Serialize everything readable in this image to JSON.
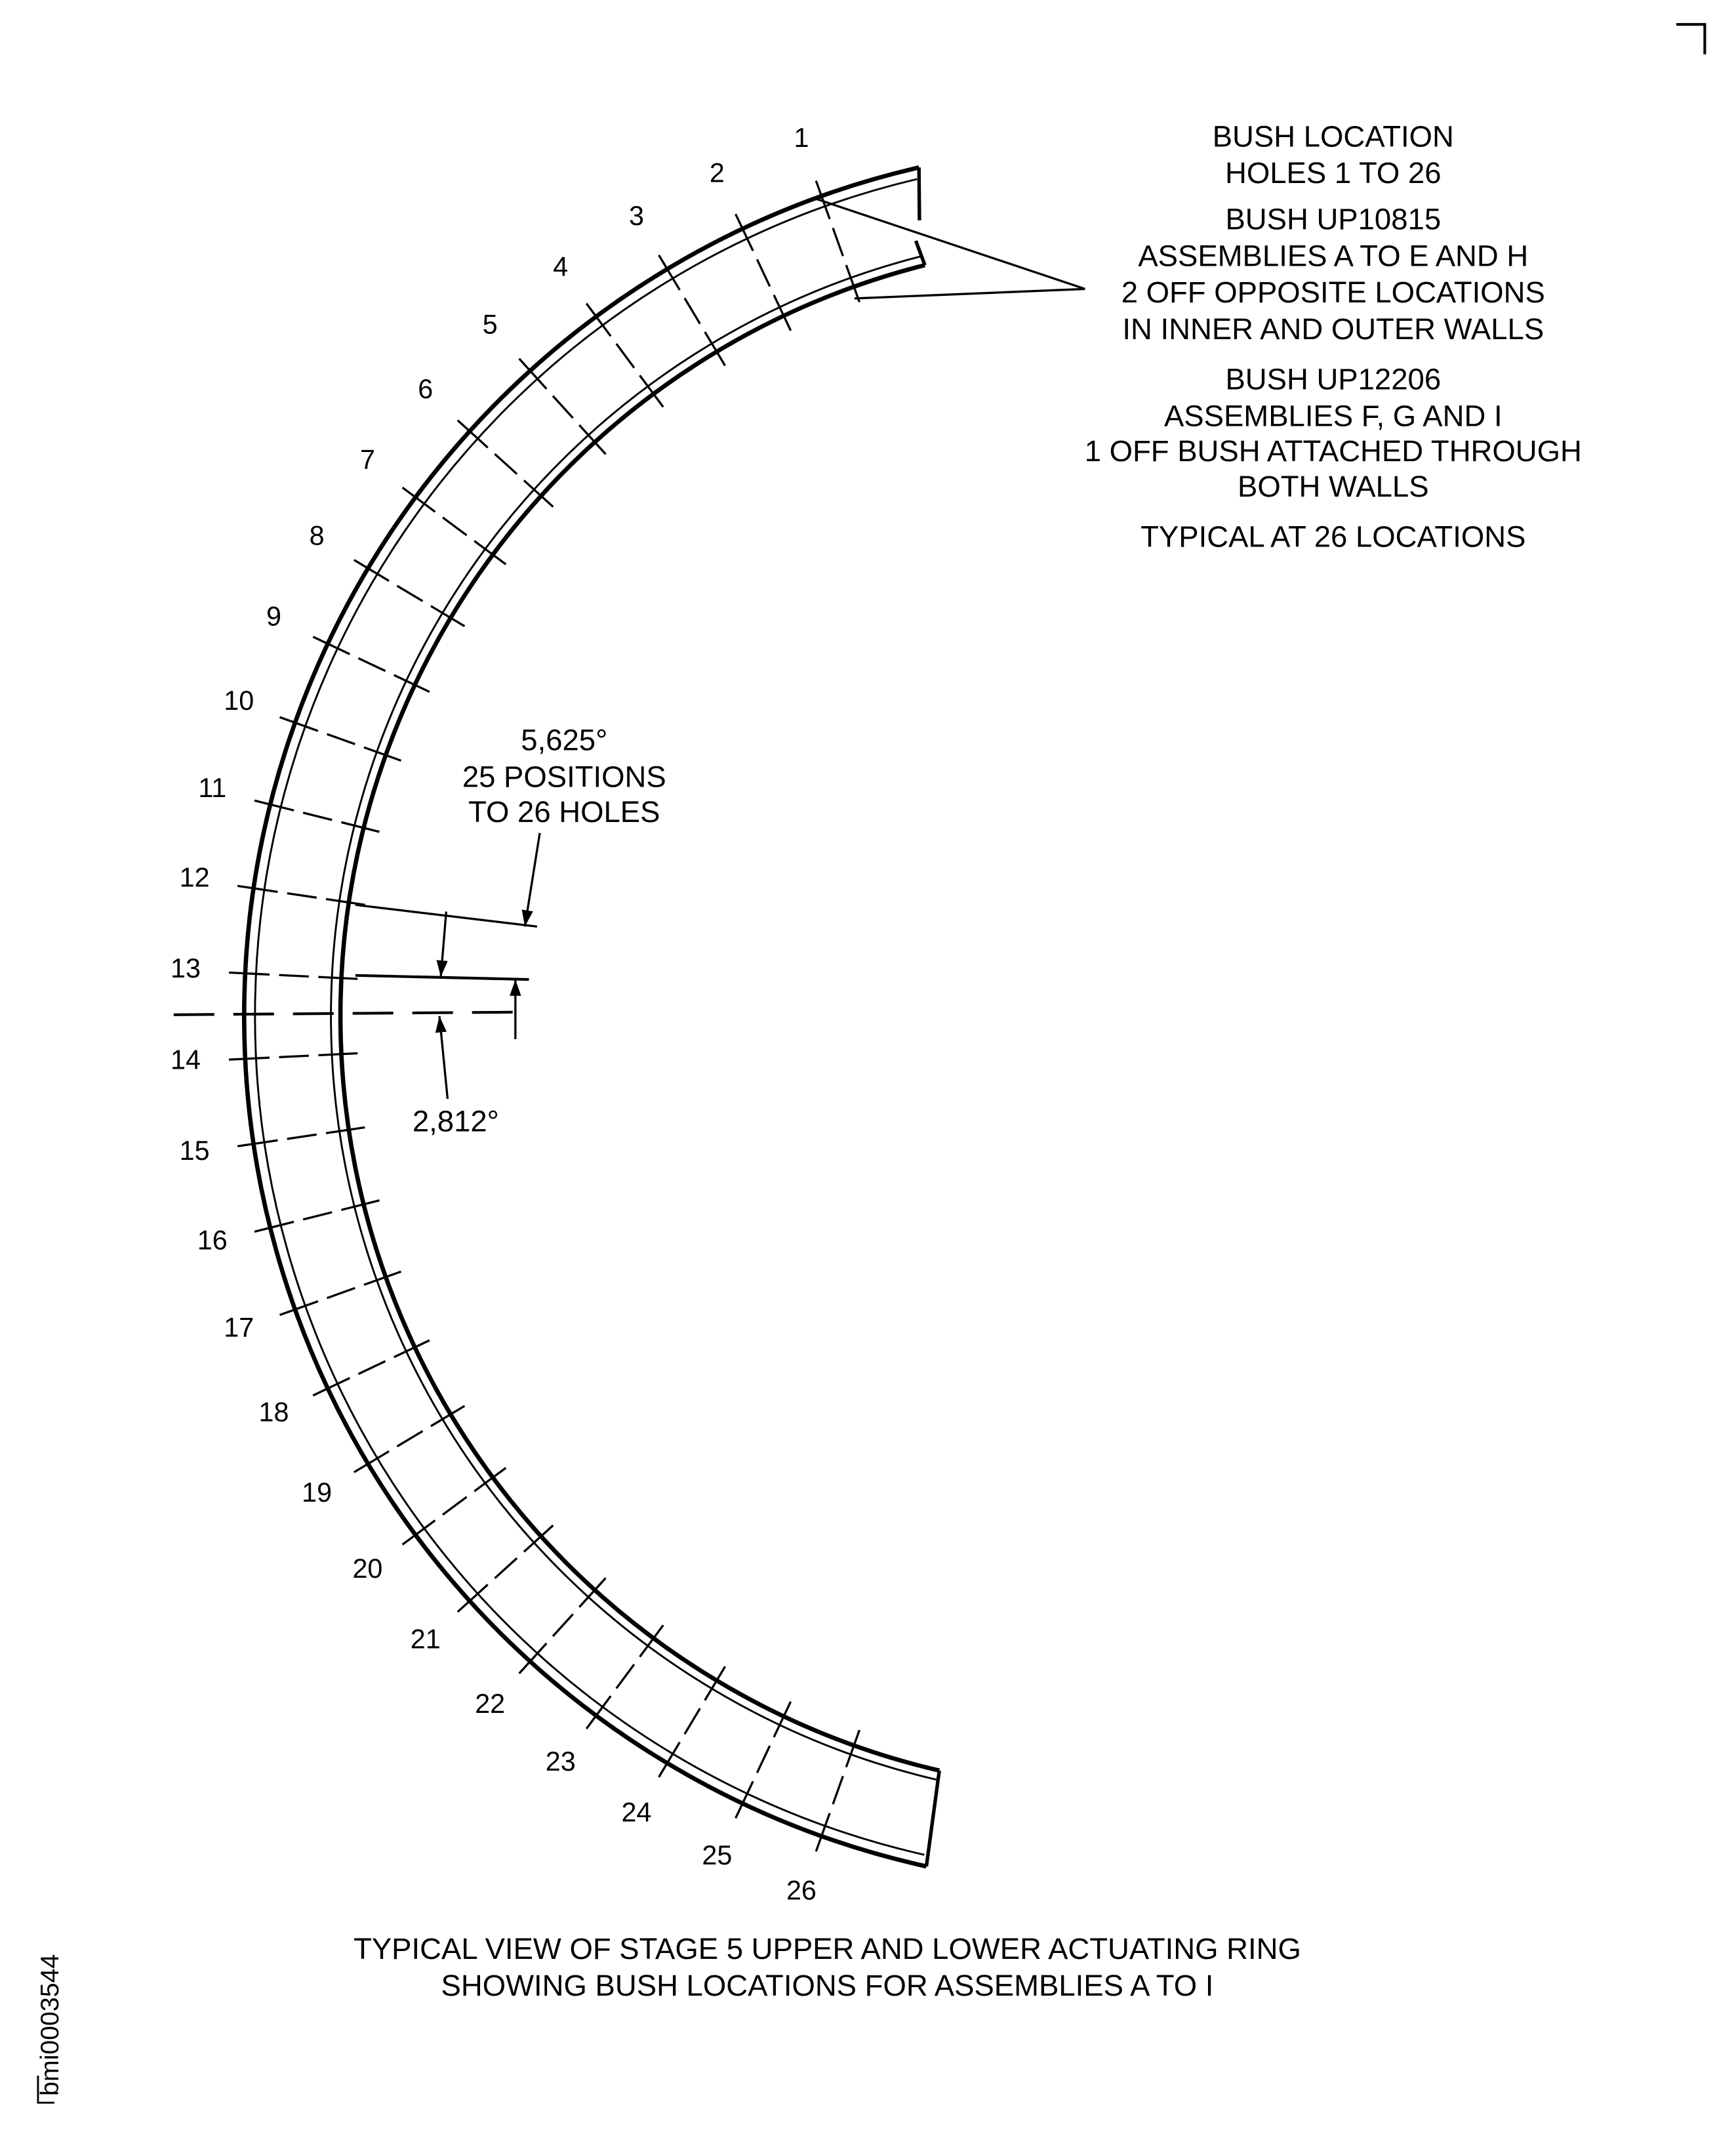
{
  "notes": {
    "lines": [
      "BUSH LOCATION",
      "HOLES 1 TO 26",
      "BUSH UP10815",
      "ASSEMBLIES A TO E AND H",
      "2 OFF OPPOSITE LOCATIONS",
      "IN INNER AND OUTER WALLS",
      "BUSH UP12206",
      "ASSEMBLIES F, G AND I",
      "1 OFF BUSH ATTACHED THROUGH",
      "BOTH WALLS",
      "TYPICAL AT 26 LOCATIONS"
    ]
  },
  "holes": {
    "count": 26,
    "spacing_deg": 5.625,
    "labels": [
      "1",
      "2",
      "3",
      "4",
      "5",
      "6",
      "7",
      "8",
      "9",
      "10",
      "11",
      "12",
      "13",
      "14",
      "15",
      "16",
      "17",
      "18",
      "19",
      "20",
      "21",
      "22",
      "23",
      "24",
      "25",
      "26"
    ]
  },
  "dimensions": {
    "spacing_lines": [
      "5,625°",
      "25 POSITIONS",
      "TO 26 HOLES"
    ],
    "half_spacing": "2,812°"
  },
  "caption": {
    "line1": "TYPICAL VIEW OF STAGE 5 UPPER AND LOWER ACTUATING RING",
    "line2": "SHOWING BUSH LOCATIONS FOR ASSEMBLIES A TO I"
  },
  "figure_id": "bmi0003544",
  "colors": {
    "ink": "#000000",
    "paper": "#ffffff"
  }
}
